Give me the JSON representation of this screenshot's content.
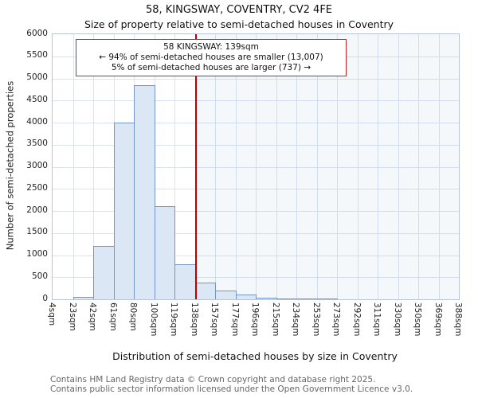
{
  "page": {
    "title": "58, KINGSWAY, COVENTRY, CV2 4FE",
    "subtitle": "Size of property relative to semi-detached houses in Coventry"
  },
  "annotation": {
    "line1": "58 KINGSWAY: 139sqm",
    "line2": "← 94% of semi-detached houses are smaller (13,007)",
    "line3": "5% of semi-detached houses are larger (737) →"
  },
  "footer": {
    "line1": "Contains HM Land Registry data © Crown copyright and database right 2025.",
    "line2": "Contains public sector information licensed under the Open Government Licence v3.0."
  },
  "chart_data": {
    "type": "bar",
    "title": "58, KINGSWAY, COVENTRY, CV2 4FE",
    "subtitle": "Size of property relative to semi-detached houses in Coventry",
    "xlabel": "Distribution of semi-detached houses by size in Coventry",
    "ylabel": "Number of semi-detached properties",
    "ylim": [
      0,
      6000
    ],
    "ytick_step": 500,
    "grid": true,
    "legend": "none",
    "bin_labels": [
      "4sqm",
      "23sqm",
      "42sqm",
      "61sqm",
      "80sqm",
      "100sqm",
      "119sqm",
      "138sqm",
      "157sqm",
      "177sqm",
      "196sqm",
      "215sqm",
      "234sqm",
      "253sqm",
      "273sqm",
      "292sqm",
      "311sqm",
      "330sqm",
      "350sqm",
      "369sqm",
      "388sqm"
    ],
    "values": [
      0,
      60,
      1200,
      4000,
      4850,
      2100,
      800,
      375,
      200,
      100,
      40,
      25,
      10,
      5,
      0,
      0,
      0,
      0,
      0,
      0
    ],
    "marker": {
      "label": "58 KINGSWAY: 139sqm",
      "value_sqm": 139,
      "position_index": 7.05
    },
    "colors": {
      "bar_fill": "#dce7f6",
      "bar_border": "#7295cc",
      "marker_line": "#bb0000",
      "grid_line": "#d9e2f0",
      "plot_border": "#b9c4d6",
      "shade_right": "rgba(114,149,204,0.07)"
    }
  }
}
